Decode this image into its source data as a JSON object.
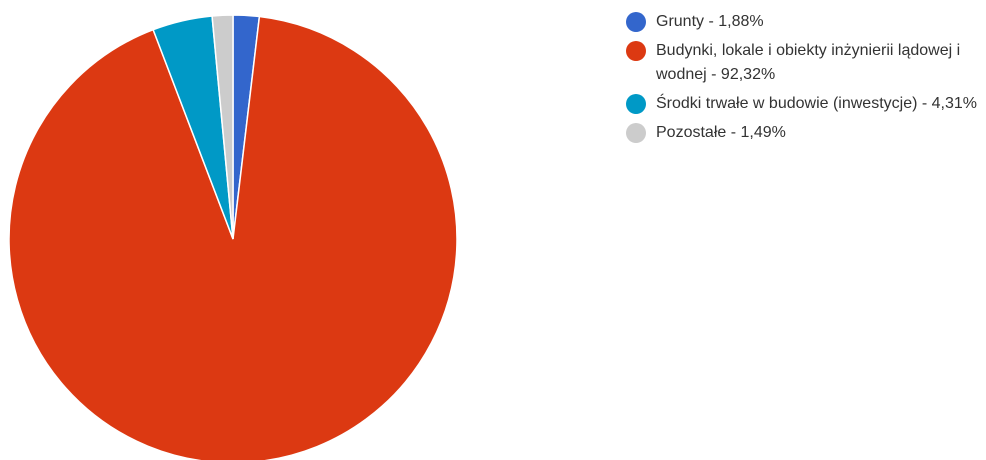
{
  "chart_data": {
    "type": "pie",
    "title": "",
    "legend_position": "right",
    "slices": [
      {
        "label": "Grunty - 1,88%",
        "value": 1.88,
        "color": "#3366cc"
      },
      {
        "label": "Budynki, lokale i obiekty inżynierii lądowej i wodnej - 92,32%",
        "value": 92.32,
        "color": "#dc3912"
      },
      {
        "label": "Środki trwałe w budowie (inwestycje) - 4,31%",
        "value": 4.31,
        "color": "#0099c6"
      },
      {
        "label": "Pozostałe - 1,49%",
        "value": 1.49,
        "color": "#cccccc"
      }
    ]
  }
}
